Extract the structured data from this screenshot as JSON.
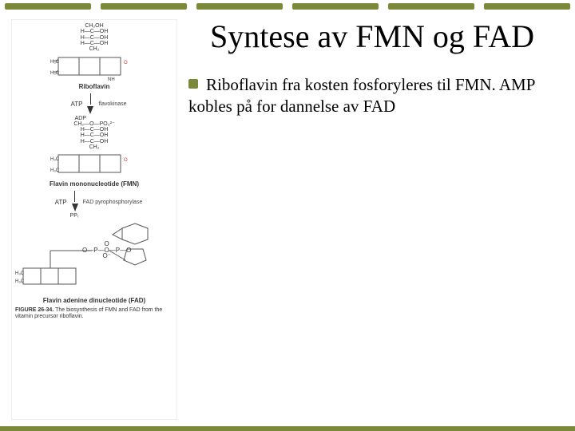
{
  "accent_color": "#7a8a3a",
  "top_border_color": "#7a8a3a",
  "bottom_border_color": "#7a8a3a",
  "top_border_segments": 6,
  "title": "Syntese av FMN og FAD",
  "bullet_color": "#7a8a3a",
  "body_text": "Riboflavin fra kosten fosforyleres til FMN. AMP kobles på for dannelse av FAD",
  "figure": {
    "riboflavin_label": "Riboflavin",
    "atp_label": "ATP",
    "adp_label": "ADP",
    "kinase_label": "flavokinase",
    "phosphate_label": "—PO₃²⁻",
    "fmn_label": "Flavin mononucleotide (FMN)",
    "atp2_label": "ATP",
    "ppi_label": "PPᵢ",
    "transferase_label": "FAD pyrophosphorylase",
    "fad_label": "Flavin adenine dinucleotide (FAD)",
    "caption_bold": "FIGURE 26-34.",
    "caption_rest": " The biosynthesis of FMN and FAD from the vitamin precursor riboflavin.",
    "ribitol_lines": [
      "CH₂OH",
      "H—C—OH",
      "H—C—OH",
      "H—C—OH",
      "CH₂"
    ],
    "phospho_bridge": "O—P—O—P—O",
    "phospho_o_top": "O",
    "phospho_o_bot": "O⁻",
    "colors": {
      "ring_stroke": "#555555",
      "text": "#333333",
      "oxygen": "#cc3333"
    }
  }
}
